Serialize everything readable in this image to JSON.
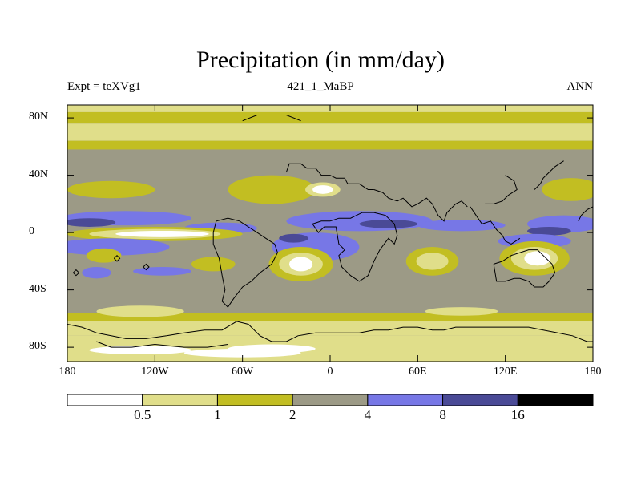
{
  "title": "Precipitation (in mm/day)",
  "left_label": "Expt = teXVg1",
  "center_label": "421_1_MaBP",
  "right_label": "ANN",
  "lat_ticks": [
    {
      "label": "80N",
      "lat": 80
    },
    {
      "label": "40N",
      "lat": 40
    },
    {
      "label": "0",
      "lat": 0
    },
    {
      "label": "40S",
      "lat": -40
    },
    {
      "label": "80S",
      "lat": -80
    }
  ],
  "lon_ticks": [
    {
      "label": "180",
      "lon": -180
    },
    {
      "label": "120W",
      "lon": -120
    },
    {
      "label": "60W",
      "lon": -60
    },
    {
      "label": "0",
      "lon": 0
    },
    {
      "label": "60E",
      "lon": 60
    },
    {
      "label": "120E",
      "lon": 120
    },
    {
      "label": "180",
      "lon": 180
    }
  ],
  "colorbar": {
    "colors": [
      "#ffffff",
      "#e0de8a",
      "#c2be22",
      "#9c9a86",
      "#7777e6",
      "#4a4a96",
      "#000000"
    ],
    "labels": [
      "0.5",
      "1",
      "2",
      "4",
      "8",
      "16"
    ]
  },
  "colors": {
    "white": "#ffffff",
    "pale": "#e0de8a",
    "olive": "#c2be22",
    "gray": "#9c9a86",
    "blue": "#7777e6",
    "navy": "#4a4a96"
  }
}
